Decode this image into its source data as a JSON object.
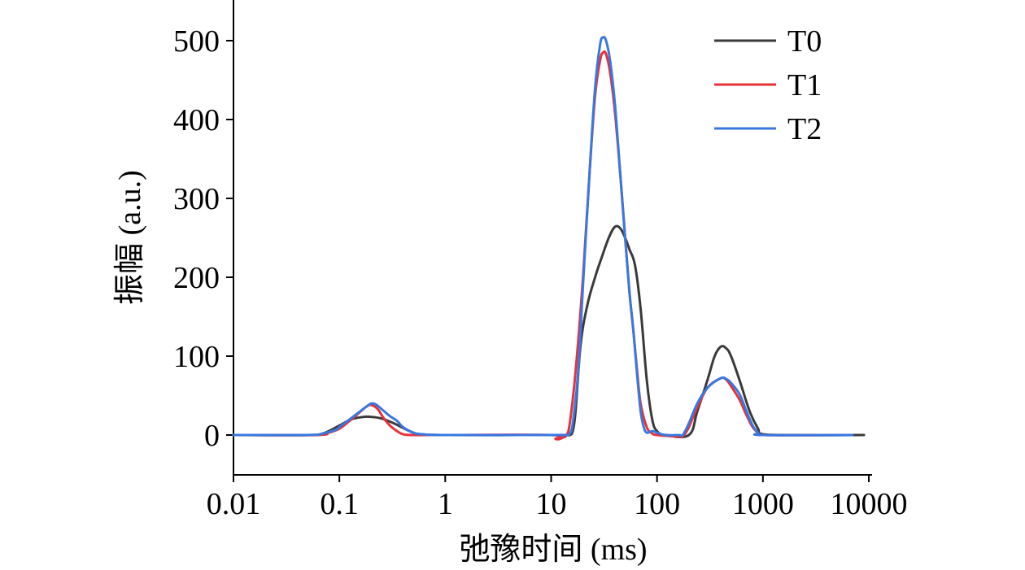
{
  "chart_data": {
    "type": "line",
    "xlabel": "弛豫时间 (ms)",
    "ylabel": "振幅 (a.u.)",
    "xscale": "log",
    "xlim": [
      0.01,
      10000
    ],
    "ylim": [
      -50,
      550
    ],
    "xticks": [
      0.01,
      0.1,
      1,
      10,
      100,
      1000,
      10000
    ],
    "xtick_labels": [
      "0.01",
      "0.1",
      "1",
      "10",
      "100",
      "1000",
      "10000"
    ],
    "yticks": [
      0,
      100,
      200,
      300,
      400,
      500
    ],
    "ytick_labels": [
      "0",
      "100",
      "200",
      "300",
      "400",
      "500"
    ],
    "grid": false,
    "legend_position": "top-right",
    "series": [
      {
        "name": "T0",
        "color": "#3a3a3a",
        "points": [
          [
            0.01,
            0
          ],
          [
            0.05,
            0
          ],
          [
            0.07,
            2
          ],
          [
            0.1,
            12
          ],
          [
            0.13,
            20
          ],
          [
            0.17,
            23
          ],
          [
            0.2,
            23
          ],
          [
            0.25,
            21
          ],
          [
            0.3,
            17
          ],
          [
            0.35,
            13
          ],
          [
            0.4,
            9
          ],
          [
            0.5,
            3
          ],
          [
            0.6,
            1
          ],
          [
            1,
            0
          ],
          [
            10,
            0
          ],
          [
            14,
            0
          ],
          [
            15,
            0
          ],
          [
            16,
            5
          ],
          [
            17,
            30
          ],
          [
            19,
            115
          ],
          [
            22,
            165
          ],
          [
            26,
            200
          ],
          [
            30,
            225
          ],
          [
            35,
            250
          ],
          [
            40,
            264
          ],
          [
            45,
            262
          ],
          [
            50,
            250
          ],
          [
            55,
            235
          ],
          [
            62,
            215
          ],
          [
            70,
            160
          ],
          [
            80,
            70
          ],
          [
            90,
            20
          ],
          [
            100,
            5
          ],
          [
            120,
            0
          ],
          [
            200,
            0
          ],
          [
            240,
            30
          ],
          [
            300,
            70
          ],
          [
            350,
            100
          ],
          [
            400,
            112
          ],
          [
            450,
            110
          ],
          [
            500,
            100
          ],
          [
            600,
            70
          ],
          [
            750,
            30
          ],
          [
            900,
            8
          ],
          [
            1000,
            1
          ],
          [
            2000,
            0
          ],
          [
            9000,
            0
          ]
        ]
      },
      {
        "name": "T1",
        "color": "#e8303a",
        "points": [
          [
            0.01,
            0
          ],
          [
            0.06,
            0
          ],
          [
            0.08,
            3
          ],
          [
            0.1,
            8
          ],
          [
            0.12,
            16
          ],
          [
            0.15,
            27
          ],
          [
            0.18,
            36
          ],
          [
            0.2,
            38
          ],
          [
            0.23,
            33
          ],
          [
            0.26,
            22
          ],
          [
            0.3,
            12
          ],
          [
            0.35,
            5
          ],
          [
            0.4,
            1
          ],
          [
            0.5,
            0
          ],
          [
            1,
            0
          ],
          [
            10,
            0
          ],
          [
            11,
            -5
          ],
          [
            12,
            -5
          ],
          [
            13,
            -3
          ],
          [
            14,
            0
          ],
          [
            15,
            15
          ],
          [
            17,
            80
          ],
          [
            20,
            200
          ],
          [
            23,
            330
          ],
          [
            26,
            430
          ],
          [
            29,
            475
          ],
          [
            31,
            485
          ],
          [
            33,
            483
          ],
          [
            36,
            460
          ],
          [
            40,
            410
          ],
          [
            45,
            330
          ],
          [
            50,
            250
          ],
          [
            55,
            180
          ],
          [
            60,
            130
          ],
          [
            65,
            80
          ],
          [
            70,
            40
          ],
          [
            80,
            10
          ],
          [
            90,
            2
          ],
          [
            100,
            0
          ],
          [
            160,
            -2
          ],
          [
            170,
            -2
          ],
          [
            180,
            0
          ],
          [
            200,
            10
          ],
          [
            240,
            35
          ],
          [
            300,
            60
          ],
          [
            400,
            72
          ],
          [
            450,
            70
          ],
          [
            500,
            62
          ],
          [
            600,
            45
          ],
          [
            700,
            25
          ],
          [
            800,
            10
          ],
          [
            900,
            3
          ],
          [
            1000,
            0
          ],
          [
            6000,
            0
          ]
        ]
      },
      {
        "name": "T2",
        "color": "#3878e0",
        "points": [
          [
            0.01,
            0
          ],
          [
            0.05,
            0
          ],
          [
            0.07,
            2
          ],
          [
            0.09,
            6
          ],
          [
            0.1,
            10
          ],
          [
            0.12,
            18
          ],
          [
            0.15,
            28
          ],
          [
            0.18,
            36
          ],
          [
            0.2,
            40
          ],
          [
            0.22,
            39
          ],
          [
            0.25,
            33
          ],
          [
            0.3,
            24
          ],
          [
            0.35,
            18
          ],
          [
            0.4,
            10
          ],
          [
            0.5,
            3
          ],
          [
            0.6,
            1
          ],
          [
            1,
            0
          ],
          [
            10,
            0
          ],
          [
            14,
            0
          ],
          [
            15,
            2
          ],
          [
            16,
            15
          ],
          [
            18,
            80
          ],
          [
            20,
            190
          ],
          [
            23,
            330
          ],
          [
            26,
            440
          ],
          [
            29,
            495
          ],
          [
            31,
            504
          ],
          [
            33,
            500
          ],
          [
            36,
            475
          ],
          [
            40,
            420
          ],
          [
            45,
            330
          ],
          [
            50,
            250
          ],
          [
            55,
            180
          ],
          [
            60,
            130
          ],
          [
            65,
            75
          ],
          [
            70,
            30
          ],
          [
            75,
            10
          ],
          [
            80,
            3
          ],
          [
            90,
            5
          ],
          [
            100,
            3
          ],
          [
            120,
            0
          ],
          [
            160,
            0
          ],
          [
            175,
            0
          ],
          [
            200,
            15
          ],
          [
            240,
            40
          ],
          [
            300,
            60
          ],
          [
            400,
            72
          ],
          [
            450,
            71
          ],
          [
            500,
            66
          ],
          [
            600,
            52
          ],
          [
            700,
            30
          ],
          [
            800,
            12
          ],
          [
            900,
            3
          ],
          [
            1000,
            0
          ],
          [
            7000,
            0
          ]
        ]
      }
    ]
  }
}
